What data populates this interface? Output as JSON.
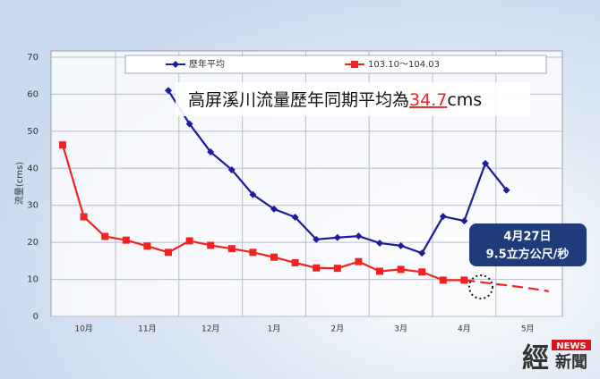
{
  "chart_data": {
    "type": "line",
    "categories": [
      null,
      "10月",
      null,
      null,
      "11月",
      null,
      null,
      "12月",
      null,
      null,
      "1月",
      null,
      null,
      "2月",
      null,
      null,
      "3月",
      null,
      null,
      "4月",
      null,
      null,
      "5月",
      null
    ],
    "series": [
      {
        "name": "歷年平均",
        "color": "#1c1c9c",
        "marker": "diamond",
        "values": [
          null,
          null,
          null,
          null,
          null,
          61,
          52,
          44.4,
          39.6,
          32.9,
          29,
          26.8,
          20.8,
          21.3,
          21.7,
          19.8,
          19.1,
          17.1,
          27,
          25.8,
          41.3,
          34.1,
          null,
          null
        ]
      },
      {
        "name": "103.10～104.03",
        "color": "#f22222",
        "marker": "square",
        "values": [
          46.3,
          26.9,
          21.6,
          20.6,
          19,
          17.3,
          20.4,
          19.2,
          18.3,
          17.3,
          16,
          14.5,
          13.1,
          13,
          14.8,
          12.2,
          12.7,
          12,
          9.8,
          9.8,
          null,
          null,
          null,
          null
        ]
      }
    ],
    "projection": {
      "color": "#f22222",
      "values": [
        null,
        null,
        null,
        null,
        null,
        null,
        null,
        null,
        null,
        null,
        null,
        null,
        null,
        null,
        null,
        null,
        null,
        null,
        null,
        9.8,
        9.1,
        8.4,
        7.7,
        6.8
      ]
    },
    "ylabel": "流量(cms)",
    "ylim": [
      0,
      70
    ],
    "yticks": [
      0,
      10,
      20,
      30,
      40,
      50,
      60,
      70
    ],
    "grid": true,
    "annotation": {
      "prefix": "高屏溪川流量歷年同期平均為",
      "highlight": "34.7",
      "suffix": "cms"
    },
    "callout": {
      "date": "4月27日",
      "value": "9.5立方公尺/秒"
    }
  },
  "logo": {
    "mark": "經",
    "badge": "NEWS",
    "text": "新聞"
  }
}
